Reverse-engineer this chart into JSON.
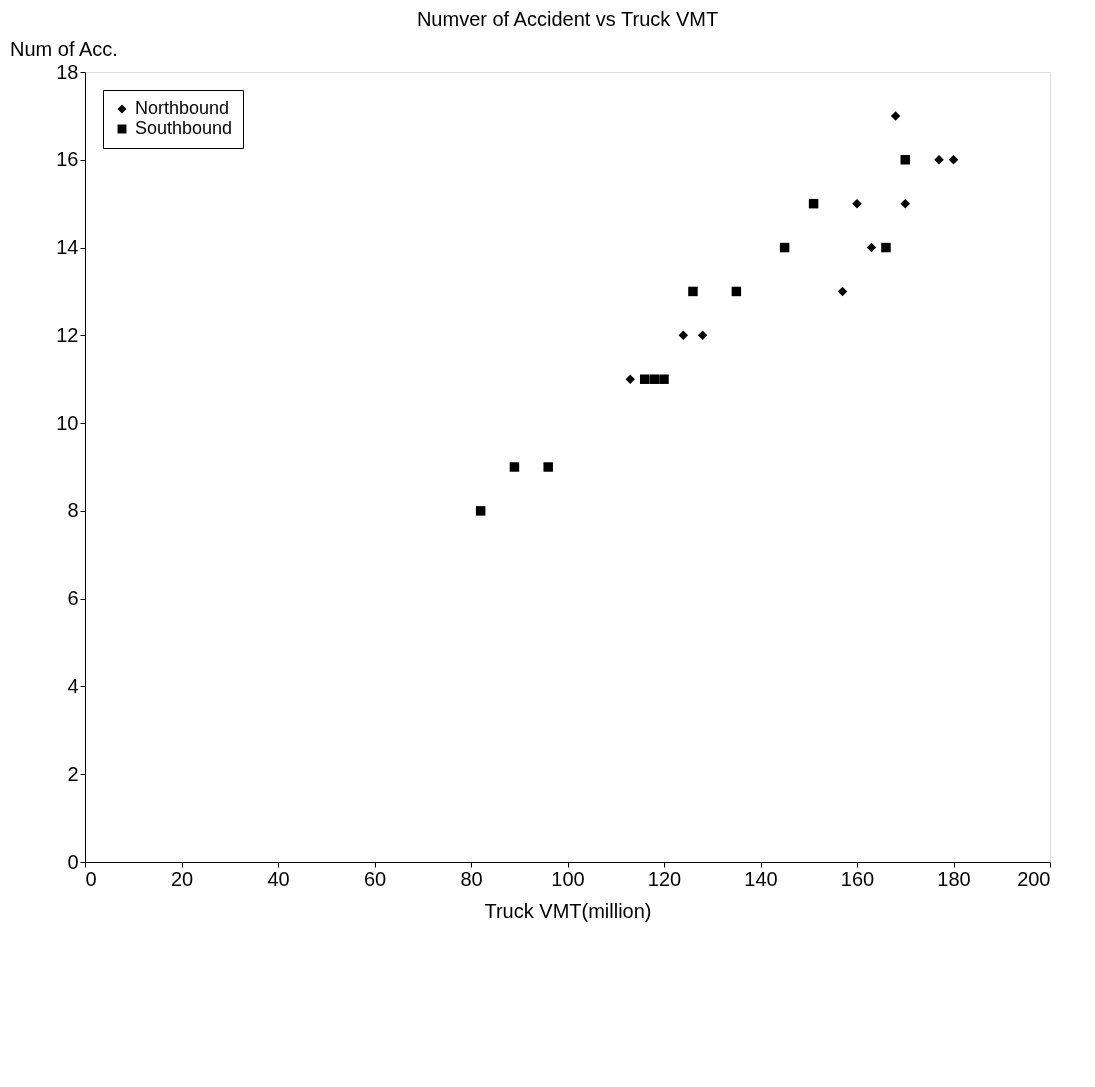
{
  "chart_data": {
    "type": "scatter",
    "title": "Numver of Accident vs Truck VMT",
    "xlabel": "Truck VMT(million)",
    "ylabel": "Num of Acc.",
    "xlim": [
      0,
      200
    ],
    "xticks": [
      0,
      20,
      40,
      60,
      80,
      100,
      120,
      140,
      160,
      180,
      200
    ],
    "ylim": [
      0,
      18
    ],
    "yticks": [
      0,
      2,
      4,
      6,
      8,
      10,
      12,
      14,
      16,
      18
    ],
    "grid": false,
    "legend": "top left",
    "series": [
      {
        "name": "Northbound",
        "color": "#000000",
        "marker": "diamond",
        "x": [
          168,
          177,
          180,
          160,
          170,
          163,
          157,
          124,
          128,
          113
        ],
        "values": [
          17,
          16,
          16,
          15,
          15,
          14,
          13,
          12,
          12,
          11
        ]
      },
      {
        "name": "Southbound",
        "color": "#000000",
        "marker": "square",
        "x": [
          170,
          151,
          145,
          166,
          126,
          135,
          116,
          118,
          120,
          89,
          96,
          82
        ],
        "values": [
          16,
          15,
          14,
          14,
          13,
          13,
          11,
          11,
          11,
          9,
          9,
          8
        ]
      }
    ]
  }
}
